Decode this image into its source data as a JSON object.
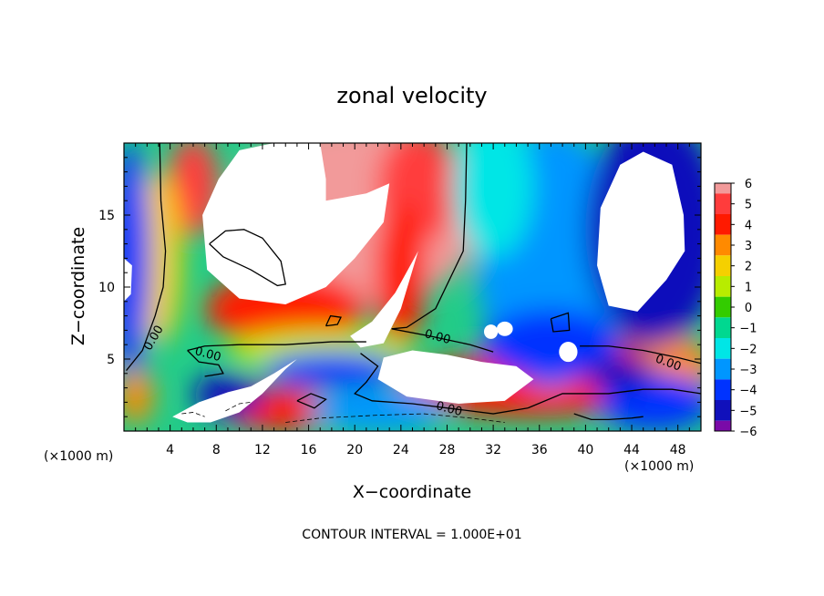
{
  "chart_data": {
    "type": "heatmap",
    "title": "zonal velocity",
    "xlabel": "X−coordinate",
    "ylabel": "Z−coordinate",
    "x_unit_label": "(×1000 m)",
    "x_unit_label_right": "(×1000 m)",
    "footer": "CONTOUR INTERVAL = 1.000E+01",
    "xlim": [
      0,
      50
    ],
    "ylim": [
      0,
      20
    ],
    "x_ticks": [
      4,
      8,
      12,
      16,
      20,
      24,
      28,
      32,
      36,
      40,
      44,
      48
    ],
    "y_ticks": [
      5,
      10,
      15
    ],
    "colorbar": {
      "levels": [
        6,
        5,
        4,
        3,
        2,
        1,
        0,
        -1,
        -2,
        -3,
        -4,
        -5,
        -6
      ],
      "labels": [
        "6",
        "5",
        "4",
        "3",
        "2",
        "1",
        "0",
        "−1",
        "−2",
        "−3",
        "−4",
        "−5",
        "−6"
      ],
      "colors": [
        "#f29a9a",
        "#ff3c3c",
        "#ff1a00",
        "#ff8a00",
        "#f5d000",
        "#b8ec00",
        "#33cc00",
        "#00d890",
        "#00e6e6",
        "#0096ff",
        "#0033ff",
        "#1010bb",
        "#7a0aa8"
      ]
    },
    "contour_label": "0.00",
    "contour_labels": [
      {
        "x": 2.5,
        "y": 6.5,
        "text": "0.00"
      },
      {
        "x": 7.3,
        "y": 5.4,
        "text": "0.00"
      },
      {
        "x": 27.2,
        "y": 6.6,
        "text": "0.00"
      },
      {
        "x": 28.2,
        "y": 1.6,
        "text": "0.00"
      },
      {
        "x": 47.2,
        "y": 4.8,
        "text": "0.00"
      }
    ],
    "field_blobs": [
      {
        "x": 20,
        "y": 15,
        "rx": 11,
        "ry": 6.5,
        "v": 5.5
      },
      {
        "x": 25.5,
        "y": 17,
        "rx": 3.5,
        "ry": 4,
        "v": 4.5
      },
      {
        "x": 6,
        "y": 17,
        "rx": 2.2,
        "ry": 3.5,
        "v": 4.5
      },
      {
        "x": 14,
        "y": 8.5,
        "rx": 7,
        "ry": 2.5,
        "v": 4.0
      },
      {
        "x": 24,
        "y": 11,
        "rx": 2.2,
        "ry": 5,
        "v": 3.5
      },
      {
        "x": 35,
        "y": 3.2,
        "rx": 11,
        "ry": 2.2,
        "v": 4.0
      },
      {
        "x": 40,
        "y": 4.5,
        "rx": 7,
        "ry": 2,
        "v": 3.5
      },
      {
        "x": 1,
        "y": 2.5,
        "rx": 1.5,
        "ry": 2,
        "v": 3.0
      },
      {
        "x": 13.5,
        "y": 1.5,
        "rx": 5,
        "ry": 1.5,
        "v": 3.5
      },
      {
        "x": 48,
        "y": 4.5,
        "rx": 3,
        "ry": 2,
        "v": 3.0
      },
      {
        "x": 17,
        "y": 5.5,
        "rx": 8,
        "ry": 1.5,
        "v": 1.0
      },
      {
        "x": 3,
        "y": 12,
        "rx": 2,
        "ry": 6,
        "v": 1.5
      },
      {
        "x": 37,
        "y": 12,
        "rx": 6.5,
        "ry": 9,
        "v": -3.5
      },
      {
        "x": 46,
        "y": 14,
        "rx": 6,
        "ry": 8,
        "v": -5.5
      },
      {
        "x": 32,
        "y": 17,
        "rx": 3.5,
        "ry": 5,
        "v": -2.0
      },
      {
        "x": 0.5,
        "y": 12,
        "rx": 1.8,
        "ry": 8,
        "v": -4.5
      },
      {
        "x": 18,
        "y": 4.3,
        "rx": 6,
        "ry": 1.2,
        "v": -4.5
      },
      {
        "x": 37,
        "y": 6,
        "rx": 6,
        "ry": 2.5,
        "v": -4.0
      },
      {
        "x": 46,
        "y": 2,
        "rx": 5,
        "ry": 2,
        "v": -4.0
      },
      {
        "x": 9,
        "y": 2.5,
        "rx": 3,
        "ry": 1.5,
        "v": -5.0
      },
      {
        "x": 22,
        "y": 1.5,
        "rx": 6,
        "ry": 1.5,
        "v": -3.0
      },
      {
        "x": 43,
        "y": 4,
        "rx": 3,
        "ry": 1.2,
        "v": -5.0
      }
    ]
  }
}
